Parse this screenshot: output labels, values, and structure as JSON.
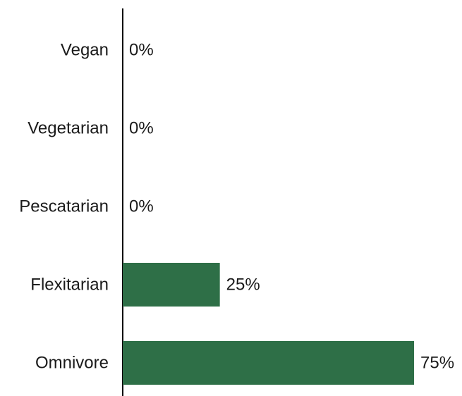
{
  "chart_data": {
    "type": "bar",
    "orientation": "horizontal",
    "categories": [
      "Vegan",
      "Vegetarian",
      "Pescatarian",
      "Flexitarian",
      "Omnivore"
    ],
    "values": [
      0,
      0,
      0,
      25,
      75
    ],
    "value_labels": [
      "0%",
      "0%",
      "0%",
      "25%",
      "75%"
    ],
    "unit": "%",
    "xlim": [
      0,
      75
    ],
    "title": "",
    "xlabel": "",
    "ylabel": "",
    "grid": false,
    "legend": "none",
    "bar_color": "#2e6f47"
  }
}
